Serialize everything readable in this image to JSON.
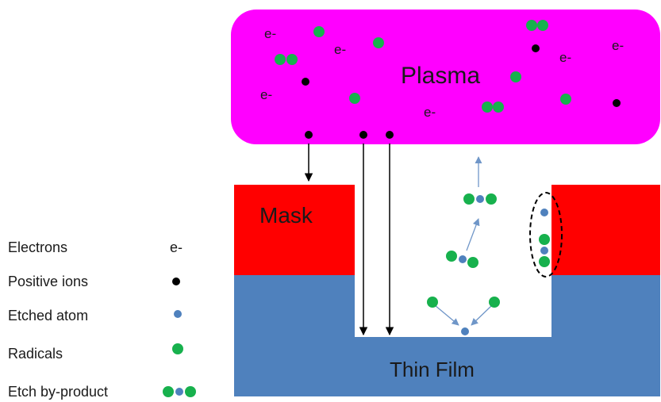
{
  "labels": {
    "plasma": "Plasma",
    "mask": "Mask",
    "film": "Thin Film",
    "electron_symbol": "e-"
  },
  "legend": [
    {
      "label": "Electrons",
      "symbol": "e-",
      "kind": "electron"
    },
    {
      "label": "Positive ions",
      "kind": "ion"
    },
    {
      "label": "Etched atom",
      "kind": "atom"
    },
    {
      "label": "Radicals",
      "kind": "radical"
    },
    {
      "label": "Etch by-product",
      "kind": "byproduct"
    }
  ],
  "colors": {
    "plasma": "#ff00ff",
    "mask": "#ff0000",
    "film": "#4f81bd",
    "radical": "#17b14d",
    "atom": "#4f81bd",
    "ion": "#000000",
    "arrow": "#6f96c8"
  }
}
